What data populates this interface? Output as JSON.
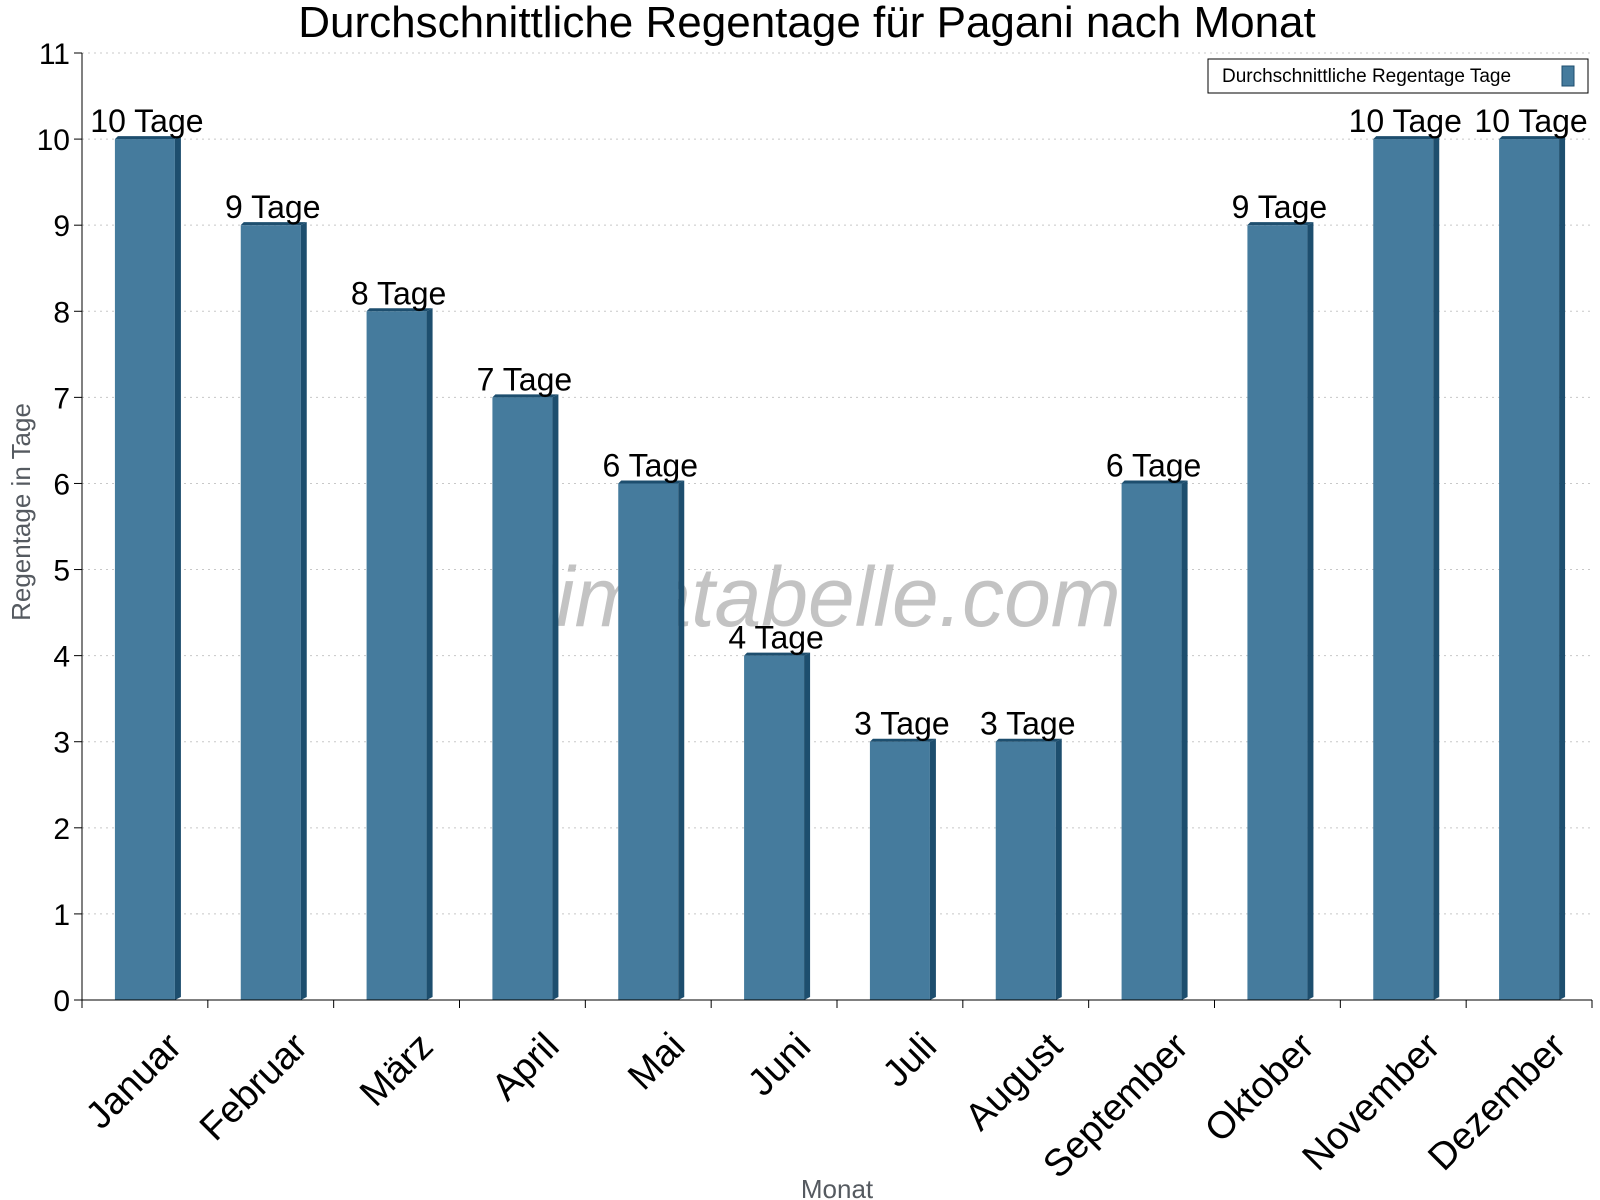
{
  "chart_data": {
    "type": "bar",
    "title": "Durchschnittliche Regentage für Pagani nach Monat",
    "xlabel": "Monat",
    "ylabel": "Regentage in Tage",
    "ylim": [
      0,
      11
    ],
    "yticks": [
      "0",
      "1",
      "2",
      "3",
      "4",
      "5",
      "6",
      "7",
      "8",
      "9",
      "10",
      "11"
    ],
    "grid": true,
    "legend_position": "top-right",
    "categories": [
      "Januar",
      "Februar",
      "März",
      "April",
      "Mai",
      "Juni",
      "Juli",
      "August",
      "September",
      "Oktober",
      "November",
      "Dezember"
    ],
    "series": [
      {
        "name": "Durchschnittliche Regentage Tage",
        "values": [
          10,
          9,
          8,
          7,
          6,
          4,
          3,
          3,
          6,
          9,
          10,
          10
        ],
        "labels": [
          "10 Tage",
          "9 Tage",
          "8 Tage",
          "7 Tage",
          "6 Tage",
          "4 Tage",
          "3 Tage",
          "3 Tage",
          "6 Tage",
          "9 Tage",
          "10 Tage",
          "10 Tage"
        ],
        "color": "#457b9d",
        "edge_color": "#1d4e6e"
      }
    ],
    "watermark": "klimatabelle.com"
  }
}
